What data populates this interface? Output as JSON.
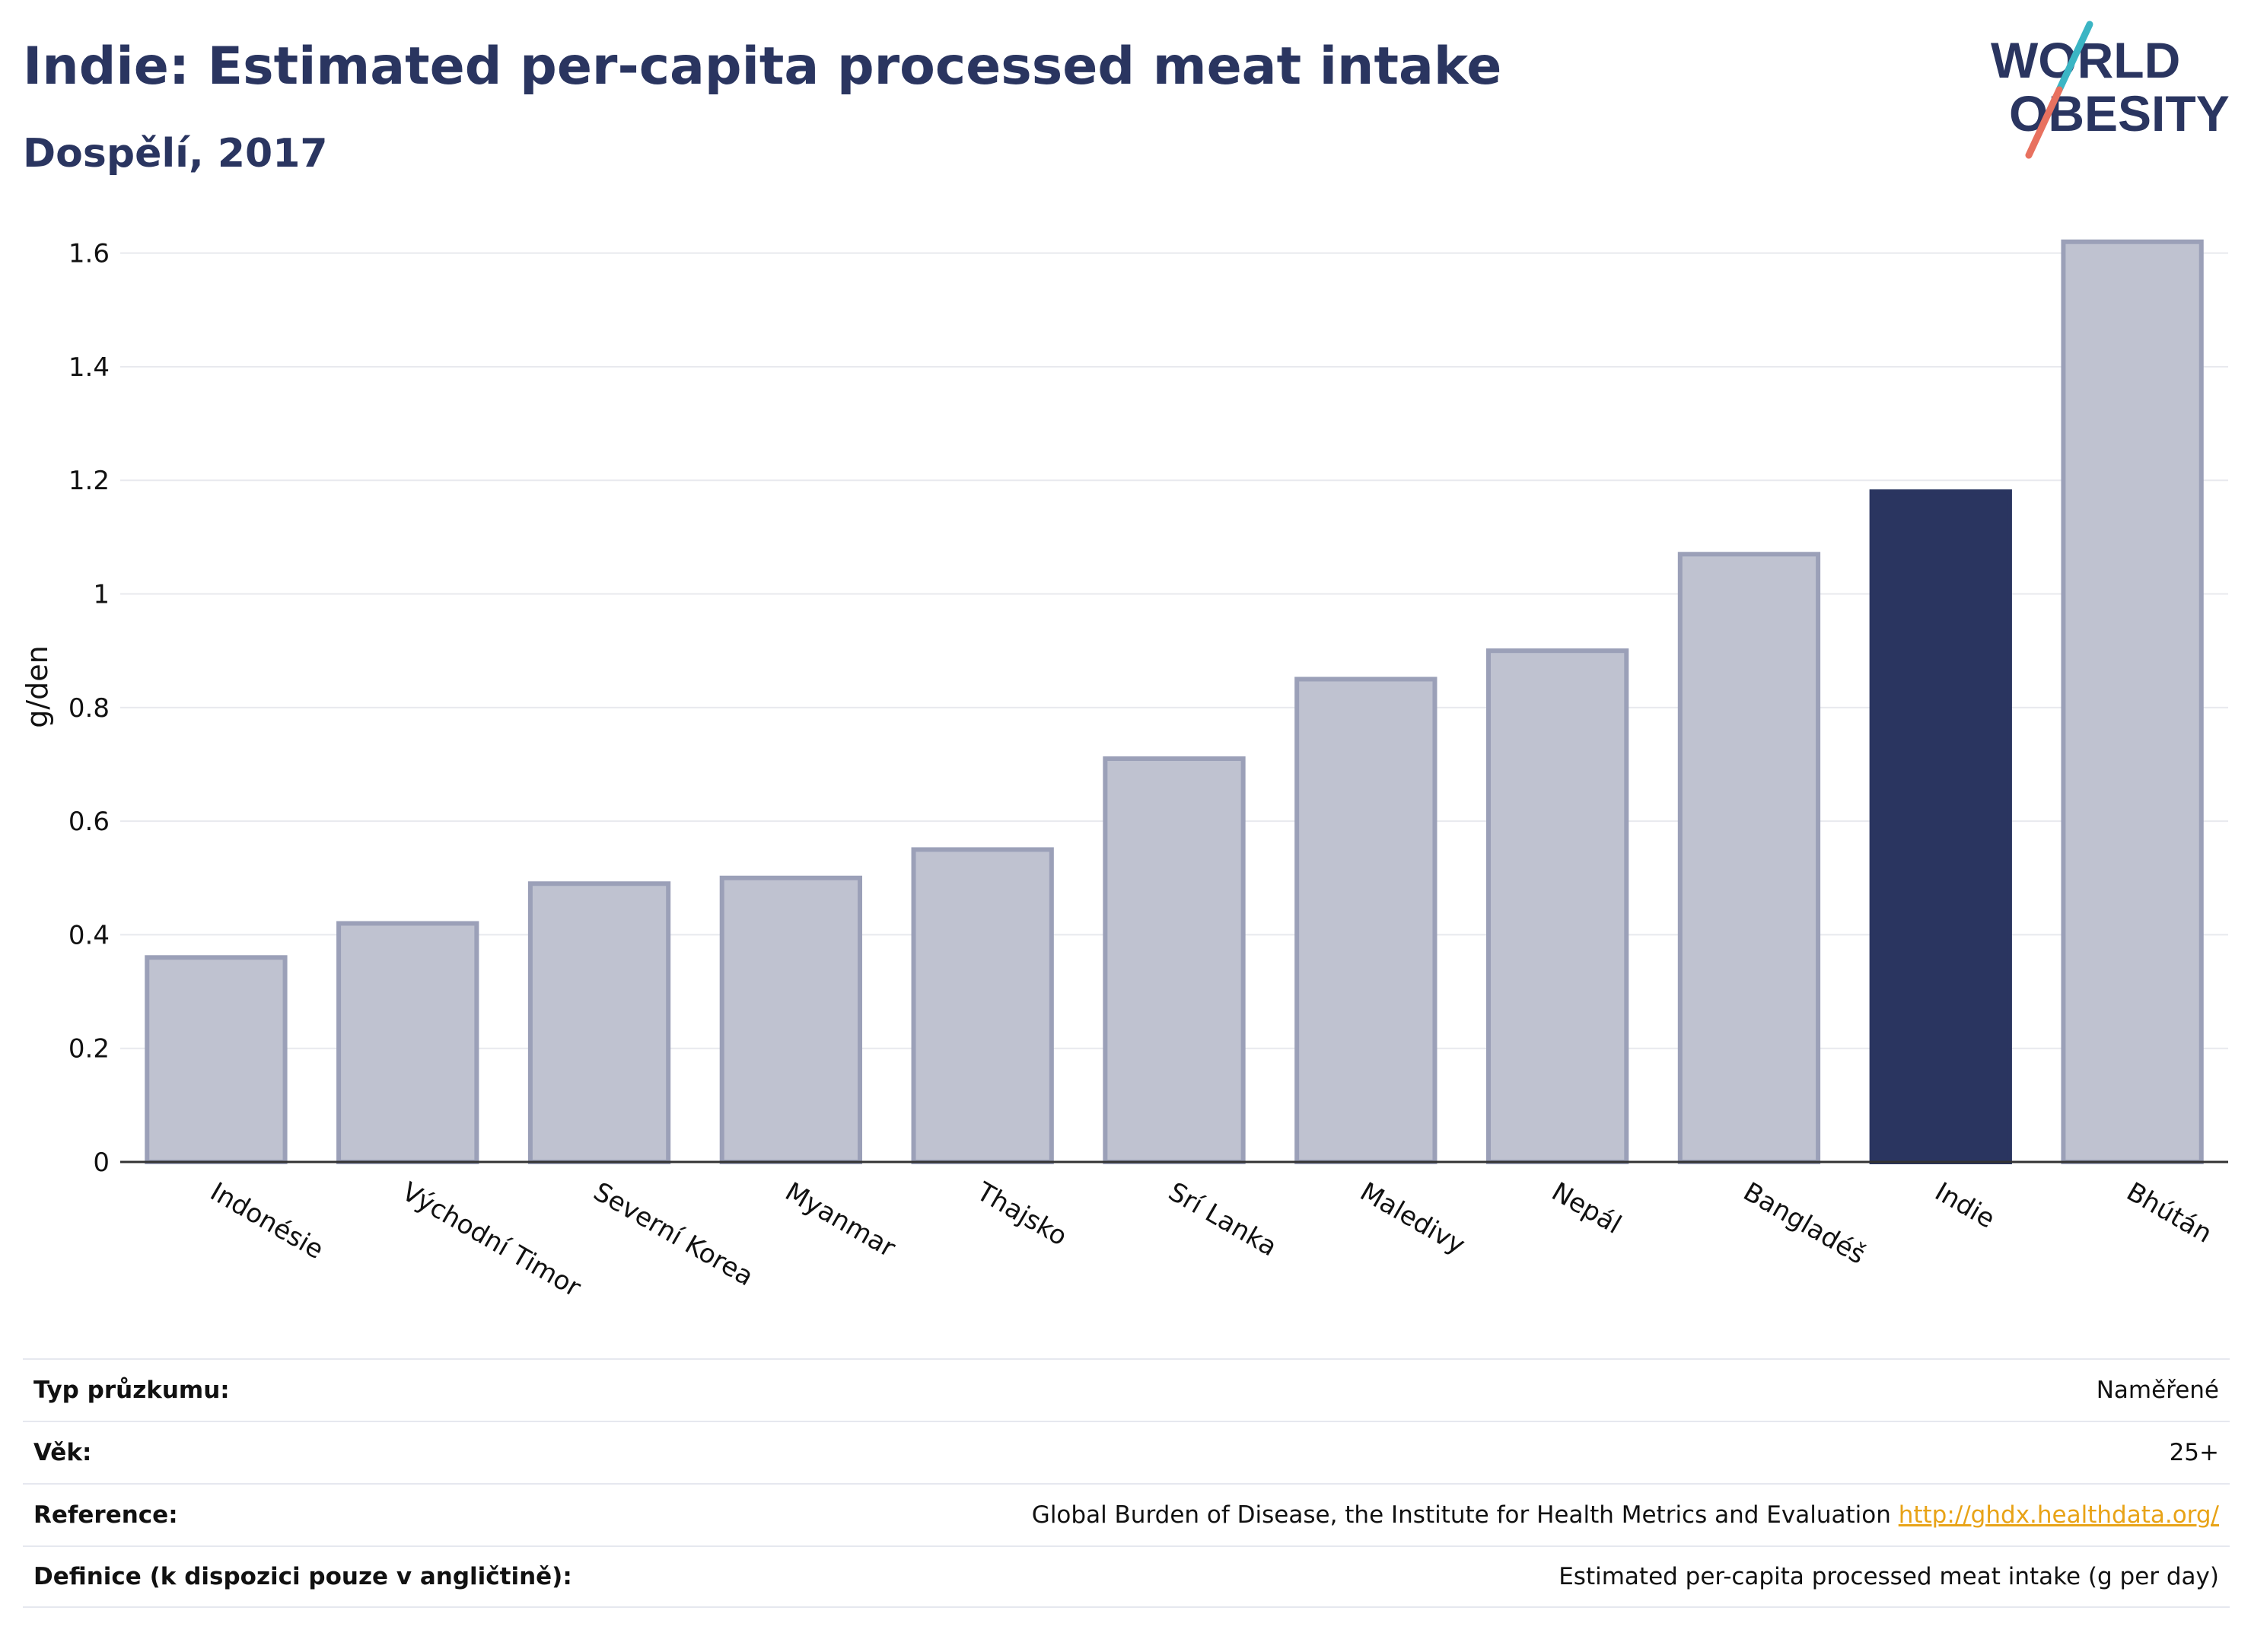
{
  "header": {
    "title": "Indie: Estimated per-capita processed meat intake",
    "subtitle": "Dospělí, 2017"
  },
  "logo": {
    "line1": "WORLD",
    "line2": "OBESITY"
  },
  "colors": {
    "highlight": "#2a3560",
    "bar_fill": "#bfc2d0",
    "bar_stroke": "#9ba0b8",
    "title": "#2a3560",
    "link": "#e8a317",
    "logo_teal": "#3bb5c4",
    "logo_coral": "#e8715f"
  },
  "chart_data": {
    "type": "bar",
    "title": "Indie: Estimated per-capita processed meat intake",
    "subtitle": "Dospělí, 2017",
    "xlabel": "",
    "ylabel": "g/den",
    "ylim": [
      0,
      1.7
    ],
    "yticks": [
      0,
      0.2,
      0.4,
      0.6,
      0.8,
      1,
      1.2,
      1.4,
      1.6
    ],
    "ytick_labels": [
      "0",
      "0.2",
      "0.4",
      "0.6",
      "0.8",
      "1",
      "1.2",
      "1.4",
      "1.6"
    ],
    "grid": true,
    "categories": [
      "Indonésie",
      "Východní Timor",
      "Severní Korea",
      "Myanmar",
      "Thajsko",
      "Srí Lanka",
      "Maledivy",
      "Nepál",
      "Bangladéš",
      "Indie",
      "Bhútán"
    ],
    "values": [
      0.36,
      0.42,
      0.49,
      0.5,
      0.55,
      0.71,
      0.85,
      0.9,
      1.07,
      1.18,
      1.62
    ],
    "highlight": "Indie"
  },
  "footer": {
    "rows": [
      {
        "label": "Typ průzkumu:",
        "value": "Naměřené"
      },
      {
        "label": "Věk:",
        "value": "25+"
      },
      {
        "label": "Reference:",
        "value": "Global Burden of Disease, the Institute for Health Metrics and Evaluation",
        "link": "http://ghdx.healthdata.org/"
      },
      {
        "label": "Definice (k dispozici pouze v angličtině):",
        "value": "Estimated per-capita processed meat intake (g per day)"
      }
    ]
  }
}
